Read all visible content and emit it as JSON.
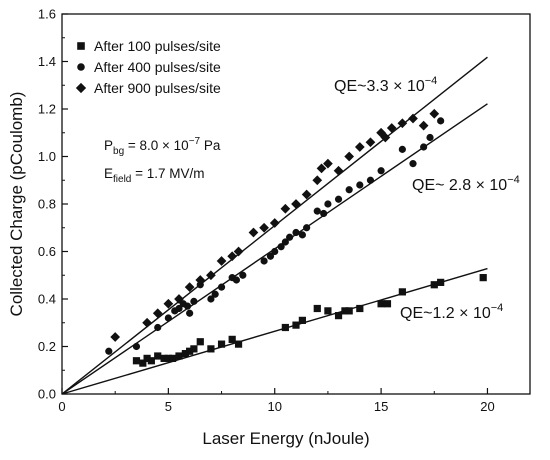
{
  "chart_data": {
    "type": "scatter",
    "xlabel": "Laser Energy (nJoule)",
    "ylabel": "Collected Charge (pCoulomb)",
    "xlim": [
      0,
      22
    ],
    "ylim": [
      0,
      1.6
    ],
    "x_ticks": [
      0,
      5,
      10,
      15,
      20
    ],
    "y_ticks": [
      0.0,
      0.2,
      0.4,
      0.6,
      0.8,
      1.0,
      1.2,
      1.4,
      1.6
    ],
    "x_tick_labels": [
      "0",
      "5",
      "10",
      "15",
      "20"
    ],
    "y_tick_labels": [
      "0.0",
      "0.2",
      "0.4",
      "0.6",
      "0.8",
      "1.0",
      "1.2",
      "1.4",
      "1.6"
    ],
    "grid": false,
    "legend_position": "top-left",
    "series": [
      {
        "name": "After 100 pulses/site",
        "marker": "square",
        "x": [
          3.5,
          3.8,
          4.0,
          4.2,
          4.5,
          4.8,
          5.0,
          5.2,
          5.5,
          5.8,
          6.0,
          6.2,
          6.5,
          7.0,
          7.5,
          8.0,
          8.3,
          10.5,
          11.0,
          11.3,
          12.0,
          12.5,
          13.0,
          13.3,
          13.5,
          14.0,
          15.0,
          15.3,
          16.0,
          17.5,
          17.8,
          19.8
        ],
        "y": [
          0.14,
          0.13,
          0.15,
          0.14,
          0.16,
          0.15,
          0.15,
          0.15,
          0.16,
          0.17,
          0.18,
          0.19,
          0.22,
          0.19,
          0.21,
          0.23,
          0.21,
          0.28,
          0.29,
          0.31,
          0.36,
          0.35,
          0.33,
          0.35,
          0.35,
          0.36,
          0.38,
          0.38,
          0.43,
          0.46,
          0.47,
          0.49
        ]
      },
      {
        "name": "After 400 pulses/site",
        "marker": "circle",
        "x": [
          2.2,
          3.5,
          4.5,
          5.0,
          5.3,
          5.5,
          5.7,
          5.9,
          6.0,
          6.2,
          6.5,
          7.0,
          7.2,
          7.5,
          8.0,
          8.2,
          8.5,
          9.5,
          9.8,
          10.0,
          10.3,
          10.5,
          10.7,
          11.0,
          11.3,
          11.5,
          12.0,
          12.3,
          12.5,
          13.0,
          13.5,
          14.0,
          14.5,
          15.0,
          16.0,
          16.5,
          17.0,
          17.3,
          17.8
        ],
        "y": [
          0.18,
          0.2,
          0.28,
          0.32,
          0.35,
          0.36,
          0.38,
          0.37,
          0.34,
          0.39,
          0.46,
          0.4,
          0.42,
          0.45,
          0.49,
          0.48,
          0.5,
          0.56,
          0.58,
          0.6,
          0.62,
          0.64,
          0.66,
          0.68,
          0.67,
          0.7,
          0.77,
          0.76,
          0.8,
          0.82,
          0.86,
          0.88,
          0.9,
          0.94,
          1.03,
          0.97,
          1.04,
          1.08,
          1.15
        ]
      },
      {
        "name": "After 900 pulses/site",
        "marker": "diamond",
        "x": [
          2.5,
          4.0,
          4.5,
          5.0,
          5.5,
          6.0,
          6.5,
          7.0,
          7.5,
          8.0,
          8.3,
          9.0,
          9.5,
          10.0,
          10.5,
          11.0,
          11.5,
          12.0,
          12.2,
          12.5,
          13.0,
          13.5,
          14.0,
          14.5,
          15.0,
          15.2,
          15.5,
          16.0,
          16.5,
          17.0,
          17.5
        ],
        "y": [
          0.24,
          0.3,
          0.34,
          0.38,
          0.4,
          0.45,
          0.48,
          0.5,
          0.56,
          0.58,
          0.6,
          0.68,
          0.7,
          0.72,
          0.78,
          0.8,
          0.84,
          0.9,
          0.95,
          0.97,
          0.94,
          1.0,
          1.04,
          1.06,
          1.1,
          1.08,
          1.12,
          1.14,
          1.16,
          1.13,
          1.18
        ]
      }
    ],
    "fit_lines": [
      {
        "slope": 0.0709,
        "x_range": [
          0,
          20
        ],
        "label_main": "QE~3.3 × 10",
        "label_exp": "−4"
      },
      {
        "slope": 0.0611,
        "x_range": [
          0,
          20
        ],
        "label_main": "QE~ 2.8 × 10",
        "label_exp": "−4"
      },
      {
        "slope": 0.0264,
        "x_range": [
          0,
          20
        ],
        "label_main": "QE~1.2 × 10",
        "label_exp": "−4"
      }
    ],
    "annotations": {
      "pbg_main": "P",
      "pbg_sub": "bg",
      "pbg_value": " = 8.0 × 10",
      "pbg_exp": "−7",
      "pbg_unit": " Pa",
      "efield_main": "E",
      "efield_sub": "field",
      "efield_value": " = 1.7 MV/m"
    }
  }
}
